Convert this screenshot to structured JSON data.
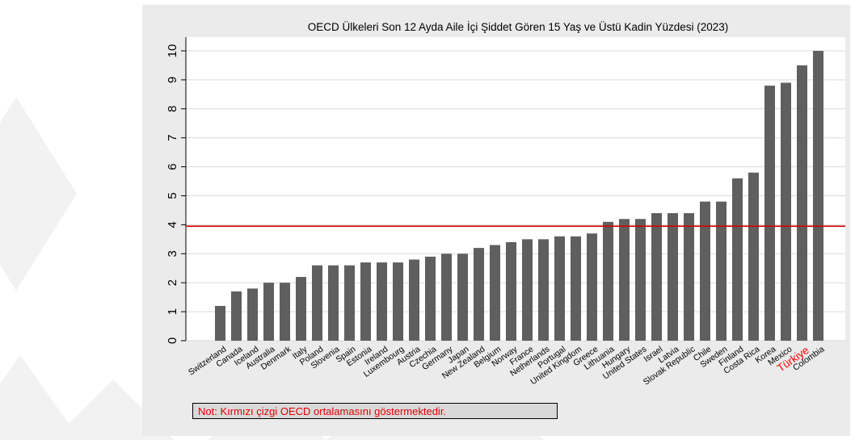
{
  "chart_data": {
    "type": "bar",
    "title": "OECD Ülkeleri Son 12 Ayda Aile İçi Şiddet Gören 15 Yaş ve Üstü Kadin Yüzdesi (2023)",
    "xlabel": "",
    "ylabel": "",
    "ylim": [
      0,
      10
    ],
    "yticks": [
      0,
      1,
      2,
      3,
      4,
      5,
      6,
      7,
      8,
      9,
      10
    ],
    "grid": true,
    "legend": "none",
    "categories": [
      "Switzerland",
      "Canada",
      "Iceland",
      "Australia",
      "Denmark",
      "Italy",
      "Poland",
      "Slovenia",
      "Spain",
      "Estonia",
      "Ireland",
      "Luxembourg",
      "Austria",
      "Czechia",
      "Germany",
      "Japan",
      "New Zealand",
      "Belgium",
      "Norway",
      "France",
      "Netherlands",
      "Portugal",
      "United Kingdom",
      "Greece",
      "Lithuania",
      "Hungary",
      "United States",
      "Israel",
      "Latvia",
      "Slovak Republic",
      "Chile",
      "Sweden",
      "Finland",
      "Costa Rica",
      "Korea",
      "Mexico",
      "Türkiye",
      "Colombia"
    ],
    "values": [
      1.2,
      1.7,
      1.8,
      2.0,
      2.0,
      2.2,
      2.6,
      2.6,
      2.6,
      2.7,
      2.7,
      2.7,
      2.8,
      2.9,
      3.0,
      3.0,
      3.2,
      3.3,
      3.4,
      3.5,
      3.5,
      3.6,
      3.6,
      3.7,
      4.1,
      4.2,
      4.2,
      4.4,
      4.4,
      4.4,
      4.8,
      4.8,
      5.6,
      5.8,
      8.8,
      8.9,
      9.5,
      10.0
    ],
    "highlight_category": "Türkiye",
    "reference_line": {
      "value": 3.95
    },
    "note": "Not: Kırmızı çizgi OECD ortalamasını göstermektedir.",
    "colors": {
      "bar": "#5f5f5f",
      "reference_line": "#d40000",
      "highlight_label": "#ff0000",
      "panel": "#ebebeb",
      "plot": "#ffffff",
      "grid": "#d9d9d9",
      "note_text": "#e00000"
    }
  }
}
